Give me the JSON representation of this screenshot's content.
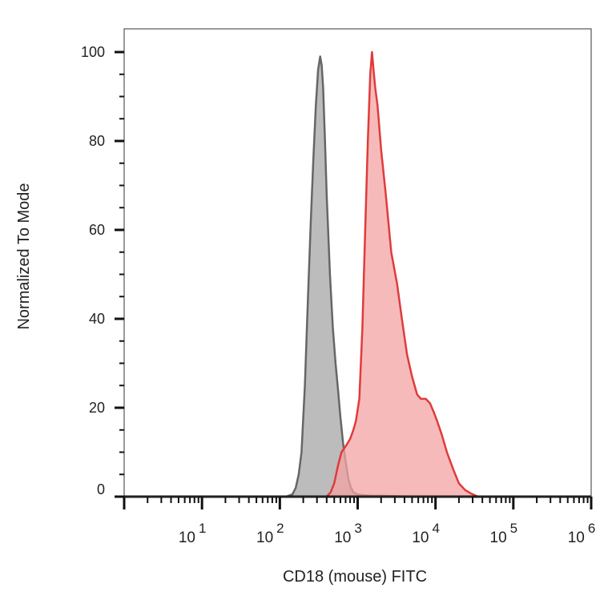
{
  "chart_data": {
    "type": "area",
    "xlabel": "CD18 (mouse) FITC",
    "ylabel": "Normalized To Mode",
    "x_scale": "log",
    "xlim": [
      1.0,
      1000000.0
    ],
    "ylim": [
      0,
      105
    ],
    "x_ticks": [
      {
        "base": "10",
        "exp": "1",
        "value": 10.0
      },
      {
        "base": "10",
        "exp": "2",
        "value": 100.0
      },
      {
        "base": "10",
        "exp": "3",
        "value": 1000.0
      },
      {
        "base": "10",
        "exp": "4",
        "value": 10000.0
      },
      {
        "base": "10",
        "exp": "5",
        "value": 100000.0
      },
      {
        "base": "10",
        "exp": "6",
        "value": 1000000.0
      }
    ],
    "y_ticks": [
      {
        "label": "0",
        "value": 0
      },
      {
        "label": "20",
        "value": 20
      },
      {
        "label": "40",
        "value": 40
      },
      {
        "label": "60",
        "value": 60
      },
      {
        "label": "80",
        "value": 80
      },
      {
        "label": "100",
        "value": 100
      }
    ],
    "grid": false,
    "legend": "none",
    "series": [
      {
        "color": "#666666",
        "fill": "#b8b8b8",
        "x": [
          1.0,
          120,
          145,
          160,
          175,
          190,
          210,
          230,
          250,
          270,
          290,
          310,
          330,
          345,
          360,
          380,
          400,
          440,
          480,
          520,
          560,
          600,
          650,
          700,
          760,
          820,
          880,
          1000,
          1200,
          1500,
          2000,
          5000,
          1000000.0
        ],
        "y": [
          0,
          0,
          0.5,
          2,
          5,
          10,
          25,
          45,
          62,
          76,
          88,
          96,
          99,
          97,
          92,
          80,
          68,
          50,
          38,
          30,
          24,
          18,
          12,
          8,
          4,
          2,
          1,
          0.5,
          0.3,
          0.2,
          0.2,
          0,
          0
        ]
      },
      {
        "color": "#e03b3b",
        "fill": "#f4a3a3",
        "x": [
          1.0,
          400,
          450,
          500,
          560,
          620,
          680,
          740,
          800,
          880,
          950,
          1050,
          1150,
          1250,
          1350,
          1450,
          1530,
          1600,
          1680,
          1800,
          2000,
          2300,
          2700,
          3200,
          3700,
          4300,
          5000,
          5800,
          6500,
          7500,
          8500,
          9500,
          10500,
          12000,
          14000,
          17000,
          20000,
          24000,
          28000,
          32000,
          35000,
          1000000.0
        ],
        "y": [
          0,
          0,
          1,
          3,
          7,
          10,
          11,
          12,
          13,
          15,
          17,
          22,
          38,
          60,
          80,
          95,
          100,
          96,
          92,
          88,
          78,
          68,
          55,
          48,
          40,
          32,
          27,
          23,
          22,
          22,
          21,
          19,
          17,
          14,
          10,
          6,
          3,
          1.5,
          0.8,
          0.3,
          0,
          0
        ]
      }
    ]
  }
}
